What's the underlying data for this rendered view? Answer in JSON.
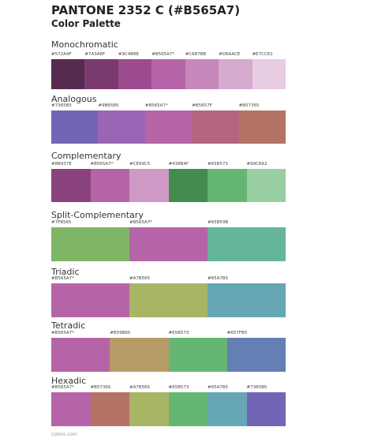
{
  "header": {
    "title": "PANTONE 2352 C (#B565A7)",
    "subtitle": "Color Palette"
  },
  "sections": [
    {
      "title": "Monochromatic",
      "swatches": [
        {
          "label": "#572A4F",
          "color": "#572A4F"
        },
        {
          "label": "#7A3A6F",
          "color": "#7A3A6F"
        },
        {
          "label": "#9C4B8E",
          "color": "#9C4B8E"
        },
        {
          "label": "#B565A7*",
          "color": "#B565A7"
        },
        {
          "label": "#C687BB",
          "color": "#C687BB"
        },
        {
          "label": "#D6AACE",
          "color": "#D6AACE"
        },
        {
          "label": "#E7CCE2",
          "color": "#E7CCE2"
        }
      ]
    },
    {
      "title": "Analogous",
      "swatches": [
        {
          "label": "#7365B5",
          "color": "#7365B5"
        },
        {
          "label": "#9B65B5",
          "color": "#9B65B5"
        },
        {
          "label": "#B565A7*",
          "color": "#B565A7"
        },
        {
          "label": "#B5657F",
          "color": "#B5657F"
        },
        {
          "label": "#B57365",
          "color": "#B57365"
        }
      ]
    },
    {
      "title": "Complementary",
      "swatches": [
        {
          "label": "#8B437E",
          "color": "#8B437E"
        },
        {
          "label": "#B565A7*",
          "color": "#B565A7"
        },
        {
          "label": "#CE99C5",
          "color": "#CE99C5"
        },
        {
          "label": "#438B4F",
          "color": "#438B4F"
        },
        {
          "label": "#65B573",
          "color": "#65B573"
        },
        {
          "label": "#99CEA2",
          "color": "#99CEA2"
        }
      ]
    },
    {
      "title": "Split-Complementary",
      "swatches": [
        {
          "label": "#7FB565",
          "color": "#7FB565"
        },
        {
          "label": "#B565A7*",
          "color": "#B565A7"
        },
        {
          "label": "#65B59B",
          "color": "#65B59B"
        }
      ]
    },
    {
      "title": "Triadic",
      "swatches": [
        {
          "label": "#B565A7*",
          "color": "#B565A7"
        },
        {
          "label": "#A7B565",
          "color": "#A7B565"
        },
        {
          "label": "#65A7B5",
          "color": "#65A7B5"
        }
      ]
    },
    {
      "title": "Tetradic",
      "swatches": [
        {
          "label": "#B565A7*",
          "color": "#B565A7"
        },
        {
          "label": "#B59B65",
          "color": "#B59B65"
        },
        {
          "label": "#65B573",
          "color": "#65B573"
        },
        {
          "label": "#657FB5",
          "color": "#657FB5"
        }
      ]
    },
    {
      "title": "Hexadic",
      "swatches": [
        {
          "label": "#B565A7*",
          "color": "#B565A7"
        },
        {
          "label": "#B57365",
          "color": "#B57365"
        },
        {
          "label": "#A7B565",
          "color": "#A7B565"
        },
        {
          "label": "#65B573",
          "color": "#65B573"
        },
        {
          "label": "#65A7B5",
          "color": "#65A7B5"
        },
        {
          "label": "#7365B5",
          "color": "#7365B5"
        }
      ]
    }
  ],
  "footer": "colors.com"
}
